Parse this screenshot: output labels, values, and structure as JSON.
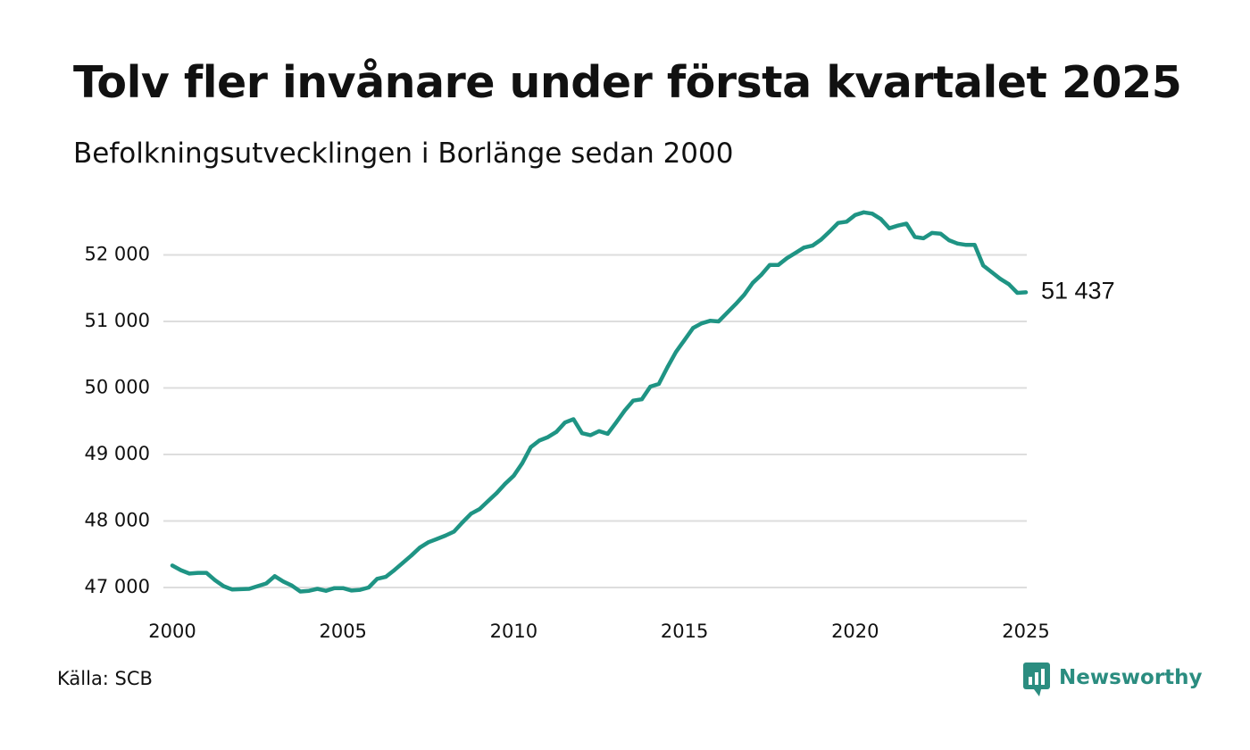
{
  "title": "Tolv fler invånare under första kvartalet 2025",
  "subtitle": "Befolkningsutvecklingen i Borlänge sedan 2000",
  "source": "Källa: SCB",
  "brand": {
    "name": "Newsworthy",
    "icon": "newsworthy-logo-icon"
  },
  "colors": {
    "line": "#1f9484",
    "grid": "#dddddd",
    "brand": "#2b8d80",
    "text": "#111111"
  },
  "chart_data": {
    "type": "line",
    "title": "Tolv fler invånare under första kvartalet 2025",
    "subtitle": "Befolkningsutvecklingen i Borlänge sedan 2000",
    "xlabel": "",
    "ylabel": "",
    "xlim": [
      2000,
      2025
    ],
    "ylim": [
      46600,
      52800
    ],
    "x_ticks": [
      2000,
      2005,
      2010,
      2015,
      2020,
      2025
    ],
    "x_tick_labels": [
      "2000",
      "2005",
      "2010",
      "2015",
      "2020",
      "2025"
    ],
    "y_ticks": [
      47000,
      48000,
      49000,
      50000,
      51000,
      52000
    ],
    "y_tick_labels": [
      "47 000",
      "48 000",
      "49 000",
      "50 000",
      "51 000",
      "52 000"
    ],
    "grid": "horizontal",
    "legend": "none",
    "end_label": "51 437",
    "series": [
      {
        "x": [
          2000.0,
          2000.25,
          2000.5,
          2000.75,
          2001.0,
          2001.25,
          2001.5,
          2001.75,
          2002.0,
          2002.25,
          2002.5,
          2002.75,
          2003.0,
          2003.25,
          2003.5,
          2003.75,
          2004.0,
          2004.25,
          2004.5,
          2004.75,
          2005.0,
          2005.25,
          2005.5,
          2005.75,
          2006.0,
          2006.25,
          2006.5,
          2006.75,
          2007.0,
          2007.25,
          2007.5,
          2007.75,
          2008.0,
          2008.25,
          2008.5,
          2008.75,
          2009.0,
          2009.25,
          2009.5,
          2009.75,
          2010.0,
          2010.25,
          2010.5,
          2010.75,
          2011.0,
          2011.25,
          2011.5,
          2011.75,
          2012.0,
          2012.25,
          2012.5,
          2012.75,
          2013.0,
          2013.25,
          2013.5,
          2013.75,
          2014.0,
          2014.25,
          2014.5,
          2014.75,
          2015.0,
          2015.25,
          2015.5,
          2015.75,
          2016.0,
          2016.25,
          2016.5,
          2016.75,
          2017.0,
          2017.25,
          2017.5,
          2017.75,
          2018.0,
          2018.25,
          2018.5,
          2018.75,
          2019.0,
          2019.25,
          2019.5,
          2019.75,
          2020.0,
          2020.25,
          2020.5,
          2020.75,
          2021.0,
          2021.25,
          2021.5,
          2021.75,
          2022.0,
          2022.25,
          2022.5,
          2022.75,
          2023.0,
          2023.25,
          2023.5,
          2023.75,
          2024.0,
          2024.25,
          2024.5,
          2024.75,
          2025.0
        ],
        "values": [
          47330,
          47260,
          47210,
          47220,
          47220,
          47110,
          47020,
          46970,
          46975,
          46980,
          47020,
          47060,
          47170,
          47090,
          47030,
          46940,
          46950,
          46980,
          46950,
          46990,
          46990,
          46955,
          46965,
          47000,
          47130,
          47160,
          47260,
          47370,
          47480,
          47600,
          47680,
          47730,
          47780,
          47840,
          47980,
          48110,
          48180,
          48300,
          48420,
          48560,
          48680,
          48870,
          49110,
          49210,
          49260,
          49340,
          49480,
          49530,
          49320,
          49290,
          49350,
          49310,
          49480,
          49660,
          49810,
          49830,
          50020,
          50060,
          50310,
          50540,
          50720,
          50900,
          50970,
          51010,
          51000,
          51130,
          51260,
          51400,
          51580,
          51700,
          51850,
          51850,
          51950,
          52030,
          52110,
          52140,
          52230,
          52350,
          52480,
          52500,
          52600,
          52640,
          52620,
          52540,
          52400,
          52440,
          52470,
          52270,
          52250,
          52330,
          52320,
          52220,
          52170,
          52150,
          52150,
          51840,
          51740,
          51640,
          51560,
          51430,
          51437
        ]
      }
    ]
  }
}
